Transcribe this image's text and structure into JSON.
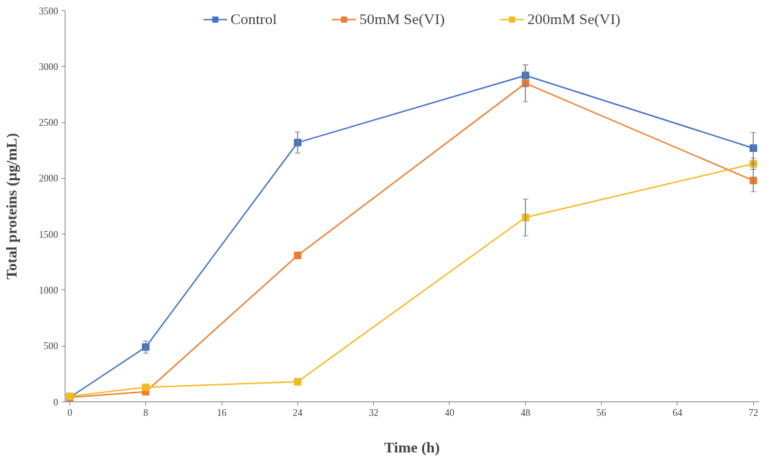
{
  "chart_data": {
    "type": "line",
    "xlabel": "Time (h)",
    "ylabel": "Total proteins (µg/mL)",
    "x": [
      0,
      8,
      24,
      48,
      72
    ],
    "series": [
      {
        "name": "Control",
        "color": "#4472c4",
        "values": [
          40,
          490,
          2320,
          2920,
          2270
        ],
        "errors": [
          null,
          55,
          95,
          95,
          140
        ]
      },
      {
        "name": "50mM Se(VI)",
        "color": "#ed7d31",
        "values": [
          40,
          90,
          1310,
          2850,
          1980
        ],
        "errors": [
          null,
          null,
          null,
          165,
          100
        ]
      },
      {
        "name": "200mM Se(VI)",
        "color": "#f4b921",
        "values": [
          50,
          130,
          180,
          1650,
          2130
        ],
        "errors": [
          null,
          null,
          null,
          165,
          50
        ]
      }
    ],
    "xlim": [
      -0.5,
      72.6
    ],
    "xticks": [
      0,
      8,
      16,
      24,
      32,
      40,
      48,
      56,
      64,
      72
    ],
    "ylim": [
      0,
      3500
    ],
    "yticks": [
      0,
      500,
      1000,
      1500,
      2000,
      2500,
      3000,
      3500
    ],
    "grid": false,
    "legend": "top",
    "marker": "square",
    "line_style": "solid"
  }
}
